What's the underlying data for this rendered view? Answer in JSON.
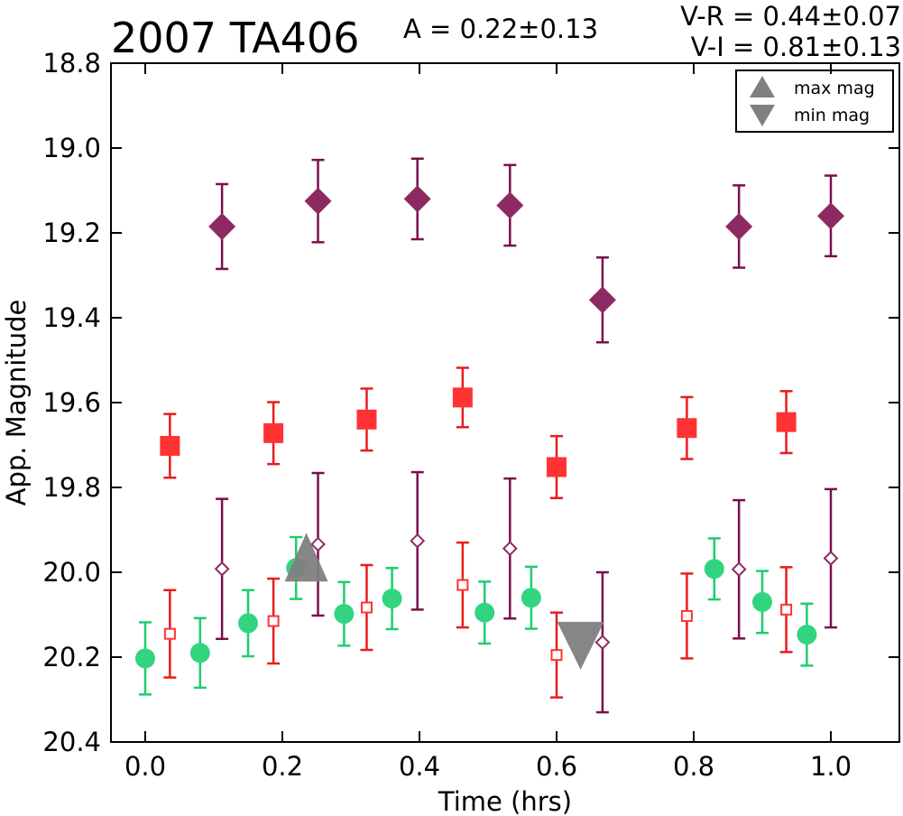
{
  "chart_data": {
    "type": "scatter",
    "title": "2007 TA406",
    "annotations": {
      "amplitude": "A  = 0.22±0.13",
      "v_r": "V-R = 0.44±0.07",
      "v_i": "V-I  = 0.81±0.13"
    },
    "xlabel": "Time (hrs)",
    "ylabel": "App. Magnitude",
    "xlim": [
      -0.05,
      1.1
    ],
    "ylim": [
      20.4,
      18.8
    ],
    "y_inverted": true,
    "xticks": [
      "0.0",
      "0.2",
      "0.4",
      "0.6",
      "0.8",
      "1.0"
    ],
    "xtick_values": [
      0.0,
      0.2,
      0.4,
      0.6,
      0.8,
      1.0
    ],
    "yticks": [
      "18.8",
      "19.0",
      "19.2",
      "19.4",
      "19.6",
      "19.8",
      "20.0",
      "20.2",
      "20.4"
    ],
    "ytick_values": [
      18.8,
      19.0,
      19.2,
      19.4,
      19.6,
      19.8,
      20.0,
      20.2,
      20.4
    ],
    "grid": false,
    "legend": {
      "placement": "top-right",
      "entries": [
        {
          "label": "max mag",
          "marker": "triangle-up",
          "color": "#808080"
        },
        {
          "label": "min mag",
          "marker": "triangle-down",
          "color": "#808080"
        }
      ]
    },
    "series": [
      {
        "marker": "diamond-filled",
        "color": "#8e2a63",
        "err_color": "#7a0f4c",
        "x": [
          0.112,
          0.252,
          0.397,
          0.532,
          0.667,
          0.866,
          1.0
        ],
        "y": [
          19.185,
          19.125,
          19.12,
          19.135,
          19.358,
          19.185,
          19.16
        ],
        "err": [
          0.1,
          0.097,
          0.095,
          0.095,
          0.1,
          0.097,
          0.095
        ]
      },
      {
        "marker": "square-filled",
        "color": "#ff3333",
        "err_color": "#e81c1c",
        "x": [
          0.036,
          0.187,
          0.323,
          0.463,
          0.6,
          0.79,
          0.935
        ],
        "y": [
          19.702,
          19.672,
          19.64,
          19.588,
          19.752,
          19.66,
          19.646
        ],
        "err": [
          0.075,
          0.073,
          0.073,
          0.07,
          0.073,
          0.073,
          0.073
        ]
      },
      {
        "marker": "diamond-open",
        "color": "#8e2a63",
        "err_color": "#7a0f4c",
        "x": [
          0.112,
          0.252,
          0.397,
          0.532,
          0.667,
          0.866,
          1.0
        ],
        "y": [
          19.992,
          19.934,
          19.926,
          19.944,
          20.165,
          19.993,
          19.967
        ],
        "err": [
          0.165,
          0.168,
          0.162,
          0.165,
          0.165,
          0.163,
          0.163
        ]
      },
      {
        "marker": "square-open",
        "color": "#ff3333",
        "err_color": "#e81c1c",
        "x": [
          0.036,
          0.187,
          0.323,
          0.463,
          0.6,
          0.79,
          0.935
        ],
        "y": [
          20.145,
          20.115,
          20.083,
          20.03,
          20.195,
          20.103,
          20.088
        ],
        "err": [
          0.103,
          0.1,
          0.1,
          0.1,
          0.1,
          0.1,
          0.1
        ]
      },
      {
        "marker": "circle",
        "color": "#33d480",
        "err_color": "#1fcc6e",
        "x": [
          0.0,
          0.08,
          0.15,
          0.22,
          0.29,
          0.36,
          0.495,
          0.563,
          0.83,
          0.9,
          0.965
        ],
        "y": [
          20.203,
          20.19,
          20.12,
          19.99,
          20.098,
          20.062,
          20.095,
          20.06,
          19.992,
          20.07,
          20.147
        ],
        "err": [
          0.085,
          0.082,
          0.078,
          0.073,
          0.075,
          0.072,
          0.073,
          0.073,
          0.072,
          0.073,
          0.073
        ]
      }
    ],
    "markers": [
      {
        "legend": "max mag",
        "x": 0.235,
        "y": 19.99
      },
      {
        "legend": "min mag",
        "x": 0.635,
        "y": 20.155
      }
    ]
  }
}
